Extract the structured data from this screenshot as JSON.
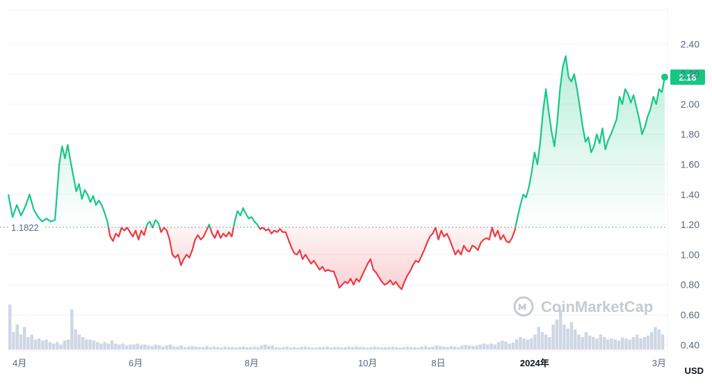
{
  "chart_data": {
    "type": "line",
    "series": [
      {
        "points": [
          [
            0,
            1.4
          ],
          [
            3,
            1.25
          ],
          [
            6,
            1.33
          ],
          [
            9,
            1.26
          ],
          [
            12,
            1.32
          ],
          [
            15,
            1.4
          ],
          [
            18,
            1.3
          ],
          [
            21,
            1.25
          ],
          [
            24,
            1.22
          ],
          [
            27,
            1.24
          ],
          [
            30,
            1.22
          ],
          [
            33,
            1.23
          ],
          [
            36,
            1.6
          ],
          [
            38,
            1.72
          ],
          [
            40,
            1.64
          ],
          [
            42,
            1.73
          ],
          [
            44,
            1.62
          ],
          [
            46,
            1.52
          ],
          [
            48,
            1.42
          ],
          [
            50,
            1.47
          ],
          [
            52,
            1.37
          ],
          [
            54,
            1.43
          ],
          [
            56,
            1.4
          ],
          [
            58,
            1.35
          ],
          [
            60,
            1.39
          ],
          [
            62,
            1.33
          ],
          [
            64,
            1.36
          ],
          [
            66,
            1.33
          ],
          [
            68,
            1.28
          ],
          [
            70,
            1.22
          ],
          [
            72,
            1.12
          ],
          [
            74,
            1.09
          ],
          [
            76,
            1.14
          ],
          [
            78,
            1.12
          ],
          [
            80,
            1.18
          ],
          [
            82,
            1.16
          ],
          [
            84,
            1.18
          ],
          [
            86,
            1.15
          ],
          [
            88,
            1.12
          ],
          [
            90,
            1.16
          ],
          [
            92,
            1.1
          ],
          [
            94,
            1.16
          ],
          [
            96,
            1.13
          ],
          [
            98,
            1.2
          ],
          [
            100,
            1.22
          ],
          [
            102,
            1.18
          ],
          [
            104,
            1.23
          ],
          [
            106,
            1.21
          ],
          [
            108,
            1.15
          ],
          [
            110,
            1.18
          ],
          [
            112,
            1.16
          ],
          [
            114,
            1.1
          ],
          [
            116,
            1.0
          ],
          [
            118,
            0.98
          ],
          [
            120,
            1.0
          ],
          [
            122,
            0.93
          ],
          [
            124,
            0.97
          ],
          [
            126,
            1.0
          ],
          [
            128,
            0.98
          ],
          [
            130,
            1.03
          ],
          [
            132,
            1.1
          ],
          [
            134,
            1.13
          ],
          [
            136,
            1.1
          ],
          [
            138,
            1.12
          ],
          [
            140,
            1.16
          ],
          [
            142,
            1.2
          ],
          [
            144,
            1.14
          ],
          [
            146,
            1.11
          ],
          [
            148,
            1.16
          ],
          [
            150,
            1.11
          ],
          [
            152,
            1.14
          ],
          [
            154,
            1.12
          ],
          [
            156,
            1.15
          ],
          [
            158,
            1.12
          ],
          [
            160,
            1.22
          ],
          [
            162,
            1.29
          ],
          [
            164,
            1.26
          ],
          [
            166,
            1.31
          ],
          [
            168,
            1.27
          ],
          [
            170,
            1.24
          ],
          [
            172,
            1.25
          ],
          [
            174,
            1.22
          ],
          [
            176,
            1.2
          ],
          [
            178,
            1.17
          ],
          [
            180,
            1.18
          ],
          [
            182,
            1.16
          ],
          [
            184,
            1.17
          ],
          [
            186,
            1.14
          ],
          [
            188,
            1.16
          ],
          [
            190,
            1.15
          ],
          [
            192,
            1.17
          ],
          [
            194,
            1.15
          ],
          [
            196,
            1.15
          ],
          [
            198,
            1.1
          ],
          [
            200,
            1.05
          ],
          [
            202,
            1.01
          ],
          [
            204,
            1.0
          ],
          [
            206,
            1.03
          ],
          [
            208,
            0.97
          ],
          [
            210,
            1.0
          ],
          [
            212,
            0.97
          ],
          [
            214,
            0.94
          ],
          [
            216,
            0.96
          ],
          [
            218,
            0.93
          ],
          [
            220,
            0.9
          ],
          [
            222,
            0.92
          ],
          [
            224,
            0.89
          ],
          [
            226,
            0.9
          ],
          [
            228,
            0.89
          ],
          [
            230,
            0.89
          ],
          [
            232,
            0.84
          ],
          [
            234,
            0.78
          ],
          [
            236,
            0.8
          ],
          [
            238,
            0.82
          ],
          [
            240,
            0.81
          ],
          [
            242,
            0.84
          ],
          [
            244,
            0.8
          ],
          [
            246,
            0.84
          ],
          [
            248,
            0.82
          ],
          [
            250,
            0.86
          ],
          [
            252,
            0.9
          ],
          [
            254,
            0.94
          ],
          [
            256,
            0.97
          ],
          [
            258,
            0.9
          ],
          [
            260,
            0.88
          ],
          [
            262,
            0.85
          ],
          [
            264,
            0.82
          ],
          [
            266,
            0.8
          ],
          [
            268,
            0.81
          ],
          [
            270,
            0.83
          ],
          [
            272,
            0.8
          ],
          [
            274,
            0.82
          ],
          [
            276,
            0.79
          ],
          [
            278,
            0.77
          ],
          [
            280,
            0.82
          ],
          [
            282,
            0.86
          ],
          [
            284,
            0.89
          ],
          [
            286,
            0.93
          ],
          [
            288,
            0.96
          ],
          [
            290,
            0.95
          ],
          [
            292,
            0.99
          ],
          [
            294,
            1.03
          ],
          [
            296,
            1.08
          ],
          [
            298,
            1.12
          ],
          [
            300,
            1.14
          ],
          [
            302,
            1.18
          ],
          [
            304,
            1.1
          ],
          [
            306,
            1.16
          ],
          [
            308,
            1.12
          ],
          [
            310,
            1.14
          ],
          [
            312,
            1.1
          ],
          [
            314,
            1.05
          ],
          [
            316,
            1.0
          ],
          [
            318,
            1.03
          ],
          [
            320,
            1.0
          ],
          [
            322,
            1.06
          ],
          [
            324,
            1.03
          ],
          [
            326,
            1.02
          ],
          [
            328,
            1.06
          ],
          [
            330,
            1.05
          ],
          [
            332,
            1.03
          ],
          [
            334,
            1.08
          ],
          [
            336,
            1.1
          ],
          [
            338,
            1.11
          ],
          [
            340,
            1.1
          ],
          [
            342,
            1.18
          ],
          [
            344,
            1.12
          ],
          [
            346,
            1.16
          ],
          [
            348,
            1.1
          ],
          [
            350,
            1.13
          ],
          [
            352,
            1.09
          ],
          [
            354,
            1.08
          ],
          [
            356,
            1.11
          ],
          [
            358,
            1.16
          ],
          [
            360,
            1.25
          ],
          [
            362,
            1.33
          ],
          [
            364,
            1.4
          ],
          [
            366,
            1.38
          ],
          [
            368,
            1.45
          ],
          [
            370,
            1.55
          ],
          [
            372,
            1.68
          ],
          [
            374,
            1.6
          ],
          [
            376,
            1.75
          ],
          [
            378,
            1.95
          ],
          [
            380,
            2.1
          ],
          [
            382,
            1.95
          ],
          [
            384,
            1.82
          ],
          [
            386,
            1.72
          ],
          [
            388,
            1.88
          ],
          [
            390,
            2.1
          ],
          [
            392,
            2.25
          ],
          [
            394,
            2.32
          ],
          [
            396,
            2.18
          ],
          [
            398,
            2.15
          ],
          [
            400,
            2.2
          ],
          [
            402,
            2.1
          ],
          [
            404,
            1.98
          ],
          [
            406,
            1.85
          ],
          [
            408,
            1.75
          ],
          [
            410,
            1.78
          ],
          [
            412,
            1.68
          ],
          [
            414,
            1.72
          ],
          [
            416,
            1.8
          ],
          [
            418,
            1.74
          ],
          [
            420,
            1.84
          ],
          [
            422,
            1.7
          ],
          [
            424,
            1.76
          ],
          [
            426,
            1.8
          ],
          [
            428,
            1.85
          ],
          [
            430,
            1.9
          ],
          [
            432,
            2.05
          ],
          [
            434,
            2.0
          ],
          [
            436,
            2.1
          ],
          [
            438,
            2.07
          ],
          [
            440,
            2.01
          ],
          [
            442,
            2.06
          ],
          [
            444,
            1.98
          ],
          [
            446,
            1.9
          ],
          [
            448,
            1.8
          ],
          [
            450,
            1.85
          ],
          [
            452,
            1.92
          ],
          [
            454,
            1.97
          ],
          [
            456,
            2.05
          ],
          [
            458,
            2.0
          ],
          [
            460,
            2.1
          ],
          [
            462,
            2.08
          ],
          [
            464,
            2.18
          ]
        ]
      }
    ],
    "x_max": 464,
    "volume": [
      0.9,
      0.35,
      0.5,
      0.3,
      0.45,
      0.25,
      0.3,
      0.2,
      0.22,
      0.18,
      0.2,
      0.15,
      0.12,
      0.15,
      0.1,
      0.18,
      0.2,
      0.8,
      0.4,
      0.3,
      0.25,
      0.2,
      0.2,
      0.18,
      0.15,
      0.12,
      0.15,
      0.12,
      0.18,
      0.12,
      0.1,
      0.12,
      0.08,
      0.1,
      0.1,
      0.12,
      0.09,
      0.1,
      0.08,
      0.07,
      0.1,
      0.08,
      0.06,
      0.08,
      0.1,
      0.06,
      0.06,
      0.08,
      0.05,
      0.06,
      0.07,
      0.06,
      0.05,
      0.05,
      0.07,
      0.05,
      0.06,
      0.05,
      0.04,
      0.06,
      0.05,
      0.05,
      0.04,
      0.05,
      0.06,
      0.05,
      0.05,
      0.06,
      0.05,
      0.08,
      0.1,
      0.07,
      0.08,
      0.05,
      0.04,
      0.05,
      0.06,
      0.04,
      0.05,
      0.04,
      0.05,
      0.06,
      0.05,
      0.04,
      0.04,
      0.05,
      0.05,
      0.06,
      0.04,
      0.05,
      0.05,
      0.04,
      0.05,
      0.06,
      0.05,
      0.06,
      0.05,
      0.05,
      0.04,
      0.05,
      0.06,
      0.05,
      0.04,
      0.05,
      0.05,
      0.06,
      0.05,
      0.04,
      0.05,
      0.06,
      0.05,
      0.05,
      0.04,
      0.06,
      0.07,
      0.05,
      0.06,
      0.08,
      0.07,
      0.06,
      0.05,
      0.07,
      0.06,
      0.05,
      0.08,
      0.09,
      0.08,
      0.07,
      0.08,
      0.1,
      0.12,
      0.1,
      0.12,
      0.1,
      0.15,
      0.18,
      0.16,
      0.12,
      0.14,
      0.2,
      0.25,
      0.22,
      0.2,
      0.22,
      0.3,
      0.45,
      0.35,
      0.3,
      0.25,
      0.5,
      0.6,
      0.8,
      0.5,
      0.42,
      0.55,
      0.4,
      0.3,
      0.25,
      0.35,
      0.28,
      0.25,
      0.22,
      0.3,
      0.25,
      0.2,
      0.22,
      0.2,
      0.18,
      0.24,
      0.22,
      0.2,
      0.25,
      0.3,
      0.22,
      0.25,
      0.28,
      0.35,
      0.45,
      0.4,
      0.3
    ],
    "ylim": [
      0.3,
      2.6
    ],
    "y_ticks": [
      0.4,
      0.6,
      0.8,
      1.0,
      1.2,
      1.4,
      1.6,
      1.8,
      2.0,
      2.2,
      2.4
    ],
    "y_tick_labels": [
      "0.40",
      "0.60",
      "0.80",
      "1.00",
      "1.20",
      "1.40",
      "1.60",
      "1.80",
      "2.00",
      "2.20",
      "2.40"
    ],
    "x_ticks": [
      {
        "x": 8,
        "label": "4月",
        "bold": false
      },
      {
        "x": 90,
        "label": "6月",
        "bold": false
      },
      {
        "x": 172,
        "label": "8月",
        "bold": false
      },
      {
        "x": 254,
        "label": "10月",
        "bold": false
      },
      {
        "x": 304,
        "label": "8日",
        "bold": false
      },
      {
        "x": 372,
        "label": "2024年",
        "bold": true
      },
      {
        "x": 460,
        "label": "3月",
        "bold": false
      }
    ],
    "baseline_value": 1.1822,
    "baseline_label": "1.1822",
    "last_value": 2.18,
    "last_label": "2.18",
    "unit_label": "USD",
    "watermark": "CoinMarketCap",
    "grid": true,
    "colors": {
      "up": "#16c784",
      "down": "#ea3943",
      "grid": "#eff2f5",
      "axis_text": "#58667e",
      "volume": "#cfd6e4"
    }
  }
}
